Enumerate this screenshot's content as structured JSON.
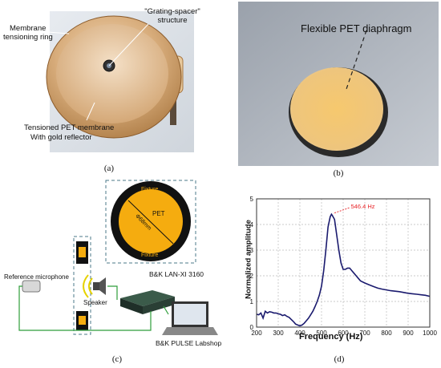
{
  "panel_a": {
    "sublabel": "(a)",
    "label_ring_1": "Membrane",
    "label_ring_2": "tensioning ring",
    "label_grating_1": "\"Grating-spacer\"",
    "label_grating_2": "structure",
    "label_membrane_1": "Tensioned PET membrane",
    "label_membrane_2": "With gold reflector"
  },
  "panel_b": {
    "sublabel": "(b)",
    "label_diaphragm": "Flexible PET diaphragm"
  },
  "panel_c": {
    "sublabel": "(c)",
    "fixture_top": "Fixture",
    "fixture_bottom": "Fixture",
    "pet_label": "PET",
    "diameter_label": "Φ68mm",
    "ref_mic": "Reference microphone",
    "speaker": "Speaker",
    "daq": "B&K LAN-XI 3160",
    "software": "B&K PULSE Labshop",
    "colors": {
      "yellow": "#f5ac0f",
      "black": "#111111",
      "wire": "#2e9e3a"
    }
  },
  "panel_d": {
    "sublabel": "(d)",
    "chart_data": {
      "type": "line",
      "xlabel": "Frequency (Hz)",
      "ylabel": "Normalized amplitude",
      "xlim": [
        200,
        1000
      ],
      "ylim": [
        0,
        5
      ],
      "xticks": [
        "200",
        "300",
        "400",
        "500",
        "600",
        "700",
        "800",
        "900",
        "1000"
      ],
      "yticks": [
        "0",
        "1",
        "2",
        "3",
        "4",
        "5"
      ],
      "grid": true,
      "annotation": "546.4 Hz",
      "annotation_point": [
        546.4,
        4.4
      ],
      "line_color": "#1a1a6e",
      "annotation_color": "#e8262a",
      "series": [
        {
          "x": [
            200,
            210,
            220,
            230,
            240,
            250,
            260,
            270,
            280,
            290,
            300,
            310,
            320,
            330,
            340,
            350,
            360,
            370,
            380,
            390,
            400,
            410,
            420,
            430,
            440,
            450,
            460,
            470,
            480,
            490,
            500,
            510,
            520,
            530,
            540,
            546,
            550,
            560,
            570,
            580,
            590,
            600,
            610,
            620,
            630,
            640,
            650,
            660,
            670,
            680,
            700,
            720,
            740,
            760,
            780,
            800,
            820,
            840,
            860,
            880,
            900,
            920,
            940,
            960,
            980,
            1000
          ],
          "y": [
            0.5,
            0.48,
            0.55,
            0.35,
            0.62,
            0.55,
            0.6,
            0.58,
            0.55,
            0.55,
            0.52,
            0.5,
            0.45,
            0.48,
            0.42,
            0.38,
            0.3,
            0.22,
            0.12,
            0.08,
            0.05,
            0.08,
            0.15,
            0.25,
            0.35,
            0.48,
            0.62,
            0.8,
            1.0,
            1.25,
            1.6,
            2.2,
            3.0,
            3.9,
            4.3,
            4.4,
            4.35,
            4.2,
            3.6,
            3.0,
            2.5,
            2.25,
            2.25,
            2.3,
            2.3,
            2.2,
            2.1,
            2.0,
            1.9,
            1.8,
            1.72,
            1.65,
            1.58,
            1.52,
            1.48,
            1.45,
            1.42,
            1.4,
            1.38,
            1.35,
            1.32,
            1.3,
            1.28,
            1.26,
            1.24,
            1.2
          ]
        }
      ]
    }
  }
}
